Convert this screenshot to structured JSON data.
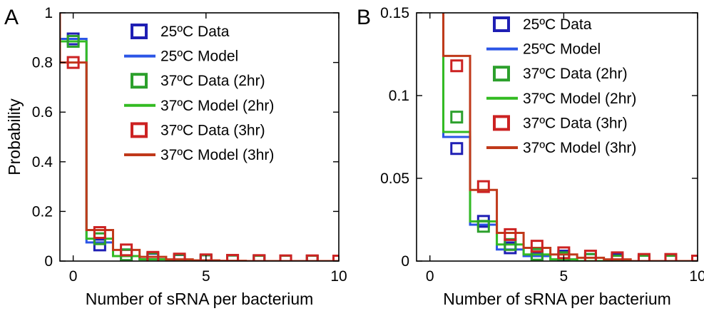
{
  "chart_data": [
    {
      "panel": "A",
      "type": "line",
      "xlabel": "Number of sRNA per bacterium",
      "ylabel": "Probability",
      "xlim": [
        -0.5,
        10
      ],
      "ylim": [
        0,
        1
      ],
      "xticks": [
        0,
        5,
        10
      ],
      "yticks": [
        0,
        0.2,
        0.4,
        0.6,
        0.8,
        1
      ],
      "ytick_labels": [
        "0",
        "0.2",
        "0.4",
        "0.6",
        "0.8",
        "1"
      ],
      "grid": false,
      "legend_position": "top-right",
      "x": [
        0,
        1,
        2,
        3,
        4,
        5,
        6,
        7,
        8,
        9,
        10
      ],
      "series": [
        {
          "name": "25ºC Data",
          "kind": "data",
          "color": "#1f1fb4",
          "values": [
            0.895,
            0.065,
            0.025,
            0.008,
            0.003,
            0.002,
            0.001,
            0.001,
            0.0,
            0.0,
            0.0
          ]
        },
        {
          "name": "25ºC Model",
          "kind": "model",
          "color": "#2b55e6",
          "values": [
            0.895,
            0.075,
            0.02,
            0.007,
            0.003,
            0.001,
            0.0,
            0.0,
            0.0,
            0.0,
            0.0
          ]
        },
        {
          "name": "37ºC Data (2hr)",
          "kind": "data",
          "color": "#2ca02c",
          "values": [
            0.885,
            0.09,
            0.025,
            0.01,
            0.004,
            0.002,
            0.001,
            0.0,
            0.0,
            0.0,
            0.0
          ]
        },
        {
          "name": "37ºC Model (2hr)",
          "kind": "model",
          "color": "#33bb22",
          "values": [
            0.885,
            0.09,
            0.02,
            0.007,
            0.003,
            0.001,
            0.0,
            0.0,
            0.0,
            0.0,
            0.0
          ]
        },
        {
          "name": "37ºC Data (3hr)",
          "kind": "data",
          "color": "#cc2222",
          "values": [
            0.8,
            0.115,
            0.045,
            0.015,
            0.008,
            0.005,
            0.003,
            0.002,
            0.001,
            0.001,
            0.0
          ]
        },
        {
          "name": "37ºC Model (3hr)",
          "kind": "model",
          "color": "#c0391a",
          "values": [
            0.8,
            0.125,
            0.045,
            0.017,
            0.007,
            0.003,
            0.001,
            0.0,
            0.0,
            0.0,
            0.0
          ]
        }
      ]
    },
    {
      "panel": "B",
      "type": "line",
      "xlabel": "Number of sRNA per bacterium",
      "ylabel": "",
      "xlim": [
        -0.5,
        10
      ],
      "ylim": [
        0,
        0.15
      ],
      "xticks": [
        0,
        5,
        10
      ],
      "yticks": [
        0,
        0.05,
        0.1,
        0.15
      ],
      "ytick_labels": [
        "0",
        "0.05",
        "0.1",
        "0.15"
      ],
      "grid": false,
      "legend_position": "top-right",
      "x": [
        1,
        2,
        3,
        4,
        5,
        6,
        7,
        8,
        9,
        10
      ],
      "series": [
        {
          "name": "25ºC Data",
          "kind": "data",
          "color": "#1f1fb4",
          "values": [
            0.068,
            0.024,
            0.008,
            0.002,
            0.003,
            0.001,
            0.001,
            0.0,
            0.0,
            0.0
          ]
        },
        {
          "name": "25ºC Model",
          "kind": "model",
          "color": "#2b55e6",
          "values": [
            0.075,
            0.022,
            0.007,
            0.003,
            0.001,
            0.0,
            0.0,
            0.0,
            0.0,
            0.0
          ]
        },
        {
          "name": "37ºC Data (2hr)",
          "kind": "data",
          "color": "#2ca02c",
          "values": [
            0.087,
            0.021,
            0.01,
            0.004,
            0.002,
            0.001,
            0.0,
            0.0,
            0.0,
            0.0
          ]
        },
        {
          "name": "37ºC Model (2hr)",
          "kind": "model",
          "color": "#33bb22",
          "values": [
            0.078,
            0.024,
            0.01,
            0.004,
            0.001,
            0.0,
            0.0,
            0.0,
            0.0,
            0.0
          ]
        },
        {
          "name": "37ºC Data (3hr)",
          "kind": "data",
          "color": "#cc2222",
          "values": [
            0.118,
            0.045,
            0.016,
            0.009,
            0.005,
            0.003,
            0.002,
            0.001,
            0.001,
            0.0
          ]
        },
        {
          "name": "37ºC Model (3hr)",
          "kind": "model",
          "color": "#c0391a",
          "values": [
            0.124,
            0.043,
            0.017,
            0.008,
            0.004,
            0.002,
            0.001,
            0.0,
            0.0,
            0.0
          ]
        }
      ]
    }
  ]
}
